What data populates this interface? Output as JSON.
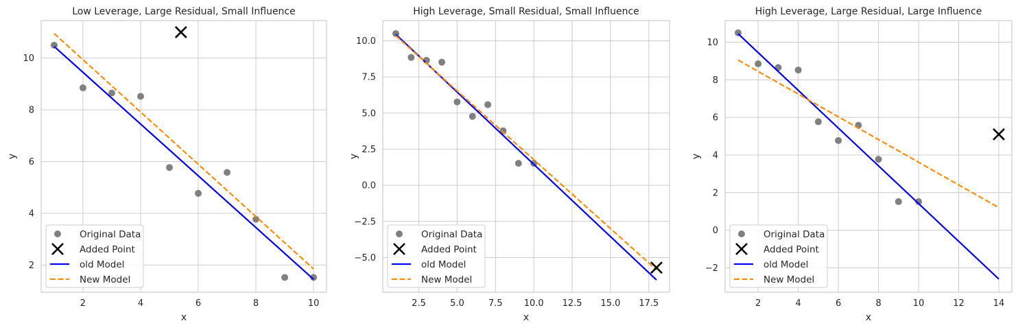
{
  "chart_data": [
    {
      "type": "scatter",
      "title": "Low Leverage, Large Residual, Small Influence",
      "xlabel": "x",
      "ylabel": "y",
      "xlim": [
        0.55,
        10.45
      ],
      "ylim": [
        0.95,
        11.45
      ],
      "xticks": [
        2,
        4,
        6,
        8,
        10
      ],
      "xtick_labels": [
        "2",
        "4",
        "6",
        "8",
        "10"
      ],
      "yticks": [
        2,
        4,
        6,
        8,
        10
      ],
      "ytick_labels": [
        "2",
        "4",
        "6",
        "8",
        "10"
      ],
      "original_data": {
        "x": [
          1,
          2,
          3,
          4,
          5,
          6,
          7,
          8,
          9,
          10
        ],
        "y": [
          10.5,
          8.85,
          8.65,
          8.52,
          5.77,
          4.77,
          5.58,
          3.77,
          1.52,
          1.52
        ]
      },
      "added_point": {
        "x": 5.4,
        "y": 11.0
      },
      "old_model": {
        "x": [
          1,
          10
        ],
        "y": [
          10.45,
          1.45
        ]
      },
      "new_model": {
        "x": [
          1,
          10
        ],
        "y": [
          10.95,
          1.85
        ]
      }
    },
    {
      "type": "scatter",
      "title": "High Leverage, Small Residual, Small Influence",
      "xlabel": "x",
      "ylabel": "y",
      "xlim": [
        0.15,
        18.85
      ],
      "ylim": [
        -7.4,
        11.4
      ],
      "xticks": [
        2.5,
        5.0,
        7.5,
        10.0,
        12.5,
        15.0,
        17.5
      ],
      "xtick_labels": [
        "2.5",
        "5.0",
        "7.5",
        "10.0",
        "12.5",
        "15.0",
        "17.5"
      ],
      "yticks": [
        -5.0,
        -2.5,
        0.0,
        2.5,
        5.0,
        7.5,
        10.0
      ],
      "ytick_labels": [
        "−5.0",
        "−2.5",
        "0.0",
        "2.5",
        "5.0",
        "7.5",
        "10.0"
      ],
      "original_data": {
        "x": [
          1,
          2,
          3,
          4,
          5,
          6,
          7,
          8,
          9,
          10
        ],
        "y": [
          10.5,
          8.85,
          8.65,
          8.52,
          5.77,
          4.77,
          5.58,
          3.77,
          1.52,
          1.52
        ]
      },
      "added_point": {
        "x": 18.0,
        "y": -5.7
      },
      "old_model": {
        "x": [
          1,
          18
        ],
        "y": [
          10.45,
          -6.55
        ]
      },
      "new_model": {
        "x": [
          1,
          18
        ],
        "y": [
          10.35,
          -5.85
        ]
      }
    },
    {
      "type": "scatter",
      "title": "High Leverage, Large Residual, Large Influence",
      "xlabel": "x",
      "ylabel": "y",
      "xlim": [
        0.35,
        14.65
      ],
      "ylim": [
        -3.3,
        11.15
      ],
      "xticks": [
        2,
        4,
        6,
        8,
        10,
        12,
        14
      ],
      "xtick_labels": [
        "2",
        "4",
        "6",
        "8",
        "10",
        "12",
        "14"
      ],
      "yticks": [
        -2,
        0,
        2,
        4,
        6,
        8,
        10
      ],
      "ytick_labels": [
        "−2",
        "0",
        "2",
        "4",
        "6",
        "8",
        "10"
      ],
      "original_data": {
        "x": [
          1,
          2,
          3,
          4,
          5,
          6,
          7,
          8,
          9,
          10
        ],
        "y": [
          10.5,
          8.85,
          8.65,
          8.52,
          5.77,
          4.77,
          5.58,
          3.77,
          1.52,
          1.52
        ]
      },
      "added_point": {
        "x": 14.0,
        "y": 5.1
      },
      "old_model": {
        "x": [
          1,
          14
        ],
        "y": [
          10.45,
          -2.6
        ]
      },
      "new_model": {
        "x": [
          1,
          14
        ],
        "y": [
          9.05,
          1.2
        ]
      }
    }
  ],
  "legend": {
    "placement": "lower-left",
    "entries": [
      {
        "label": "Original Data",
        "marker": "circle",
        "color": "#808080"
      },
      {
        "label": "Added Point",
        "marker": "x",
        "color": "#000000"
      },
      {
        "label": "old Model",
        "line": "solid",
        "color": "#0000ff"
      },
      {
        "label": "New Model",
        "line": "dashed",
        "color": "#ff8c00"
      }
    ]
  },
  "colors": {
    "original": "#808080",
    "added": "#000000",
    "old_model": "#0000ff",
    "new_model": "#ff8c00",
    "grid": "#cccccc"
  }
}
